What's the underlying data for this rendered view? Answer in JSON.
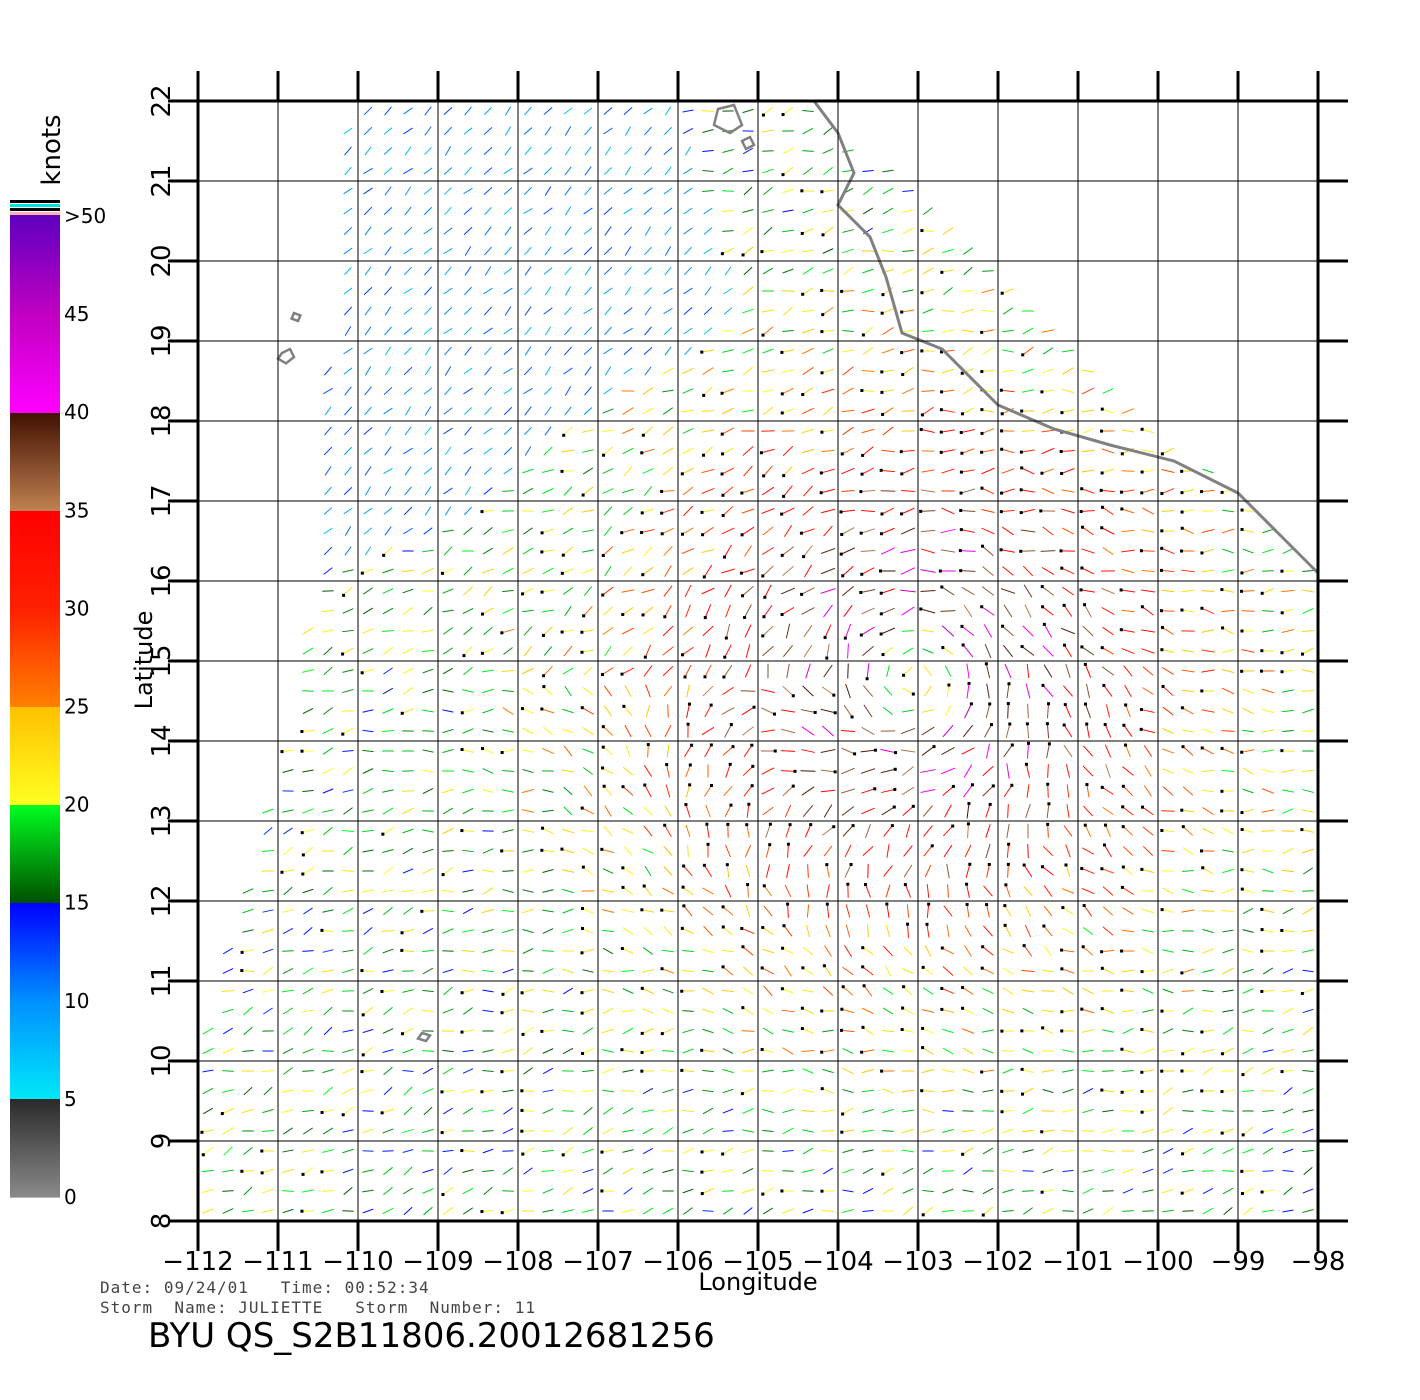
{
  "chart_data": {
    "type": "scatter",
    "subtype": "wind-vector-field",
    "xlabel": "Longitude",
    "ylabel": "Latitude",
    "xlim": [
      -112,
      -98
    ],
    "ylim": [
      8,
      22
    ],
    "x_ticks": [
      -112,
      -111,
      -110,
      -109,
      -108,
      -107,
      -106,
      -105,
      -104,
      -103,
      -102,
      -101,
      -100,
      -99,
      -98
    ],
    "x_tick_labels": [
      "−112",
      "−111",
      "−110",
      "−109",
      "−108",
      "−107",
      "−106",
      "−105",
      "−104",
      "−103",
      "−102",
      "−101",
      "−100",
      "−99",
      "−98"
    ],
    "y_ticks": [
      8,
      9,
      10,
      11,
      12,
      13,
      14,
      15,
      16,
      17,
      18,
      19,
      20,
      21,
      22
    ],
    "y_tick_labels": [
      "8",
      "9",
      "10",
      "11",
      "12",
      "13",
      "14",
      "15",
      "16",
      "17",
      "18",
      "19",
      "20",
      "21",
      "22"
    ],
    "grid": true,
    "colorbar": {
      "unit": "knots",
      "labels": [
        {
          "value": 0,
          "text": "0"
        },
        {
          "value": 5,
          "text": "5"
        },
        {
          "value": 10,
          "text": "10"
        },
        {
          "value": 15,
          "text": "15"
        },
        {
          "value": 20,
          "text": "20"
        },
        {
          "value": 25,
          "text": "25"
        },
        {
          "value": 30,
          "text": "30"
        },
        {
          "value": 35,
          "text": "35"
        },
        {
          "value": 40,
          "text": "40"
        },
        {
          "value": 45,
          "text": "45"
        },
        {
          "value": 50,
          "text": ">50"
        }
      ],
      "stops": [
        {
          "value": 0,
          "color": "#8a8a8a"
        },
        {
          "value": 5,
          "color": "#2a2a2a"
        },
        {
          "value": 5.01,
          "color": "#00e8f8"
        },
        {
          "value": 10,
          "color": "#0090ff"
        },
        {
          "value": 15,
          "color": "#0000ff"
        },
        {
          "value": 15.01,
          "color": "#005000"
        },
        {
          "value": 20,
          "color": "#00ff20"
        },
        {
          "value": 20.01,
          "color": "#ffff20"
        },
        {
          "value": 25,
          "color": "#ffc000"
        },
        {
          "value": 25.01,
          "color": "#ff8000"
        },
        {
          "value": 30,
          "color": "#ff2000"
        },
        {
          "value": 35,
          "color": "#ff0000"
        },
        {
          "value": 35.01,
          "color": "#c08050"
        },
        {
          "value": 40,
          "color": "#401000"
        },
        {
          "value": 40.01,
          "color": "#ff00ff"
        },
        {
          "value": 45,
          "color": "#c000c0"
        },
        {
          "value": 50,
          "color": "#6000c0"
        }
      ]
    },
    "swath": {
      "polygon": [
        [
          -110.1,
          22.0
        ],
        [
          -104.3,
          22.0
        ],
        [
          -98.0,
          16.1
        ],
        [
          -98.0,
          8.0
        ],
        [
          -112.1,
          8.0
        ],
        [
          -112.1,
          9.8
        ],
        [
          -110.7,
          14.7
        ]
      ],
      "gap_polygon": [
        [
          -110.1,
          22.0
        ],
        [
          -106.0,
          22.0
        ],
        [
          -105.2,
          19.3
        ],
        [
          -107.4,
          17.9
        ],
        [
          -108.5,
          16.8
        ],
        [
          -110.8,
          16.0
        ],
        [
          -110.7,
          14.7
        ]
      ]
    },
    "storm_center": {
      "lon": -103.0,
      "lat": 14.8
    },
    "coastline": [
      [
        -104.3,
        22.0
      ],
      [
        -104.0,
        21.6
      ],
      [
        -103.8,
        21.1
      ],
      [
        -104.0,
        20.7
      ],
      [
        -103.6,
        20.3
      ],
      [
        -103.4,
        19.8
      ],
      [
        -103.2,
        19.1
      ],
      [
        -102.7,
        18.9
      ],
      [
        -102.0,
        18.2
      ],
      [
        -101.3,
        17.9
      ],
      [
        -100.6,
        17.7
      ],
      [
        -99.8,
        17.5
      ],
      [
        -99.0,
        17.1
      ],
      [
        -98.5,
        16.6
      ],
      [
        -98.0,
        16.1
      ]
    ],
    "islands": [
      [
        [
          -105.5,
          21.9
        ],
        [
          -105.3,
          21.95
        ],
        [
          -105.2,
          21.7
        ],
        [
          -105.35,
          21.6
        ],
        [
          -105.55,
          21.7
        ]
      ],
      [
        [
          -105.2,
          21.5
        ],
        [
          -105.1,
          21.55
        ],
        [
          -105.05,
          21.45
        ],
        [
          -105.15,
          21.4
        ]
      ],
      [
        [
          -110.95,
          18.85
        ],
        [
          -110.85,
          18.9
        ],
        [
          -110.8,
          18.8
        ],
        [
          -110.9,
          18.72
        ],
        [
          -111.0,
          18.78
        ]
      ],
      [
        [
          -110.8,
          19.35
        ],
        [
          -110.72,
          19.32
        ],
        [
          -110.75,
          19.25
        ],
        [
          -110.83,
          19.28
        ]
      ],
      [
        [
          -109.2,
          10.35
        ],
        [
          -109.1,
          10.32
        ],
        [
          -109.15,
          10.25
        ],
        [
          -109.25,
          10.28
        ]
      ]
    ],
    "field_model": {
      "base_speed_kt": 18,
      "peak_speed_kt": 42,
      "vortex_radius_deg": 3.4,
      "sample_step_deg": 0.25,
      "north_zone_speed_kt": 10,
      "north_zone_direction_deg": 225
    }
  },
  "metadata": {
    "date_label": "Date:",
    "date_value": "09/24/01",
    "time_label": "Time:",
    "time_value": "00:52:34",
    "storm_name_label": "Storm  Name:",
    "storm_name": "JULIETTE",
    "storm_number_label": "Storm  Number:",
    "storm_number": "11",
    "file_id": "BYU  QS_S2B11806.20012681256"
  }
}
